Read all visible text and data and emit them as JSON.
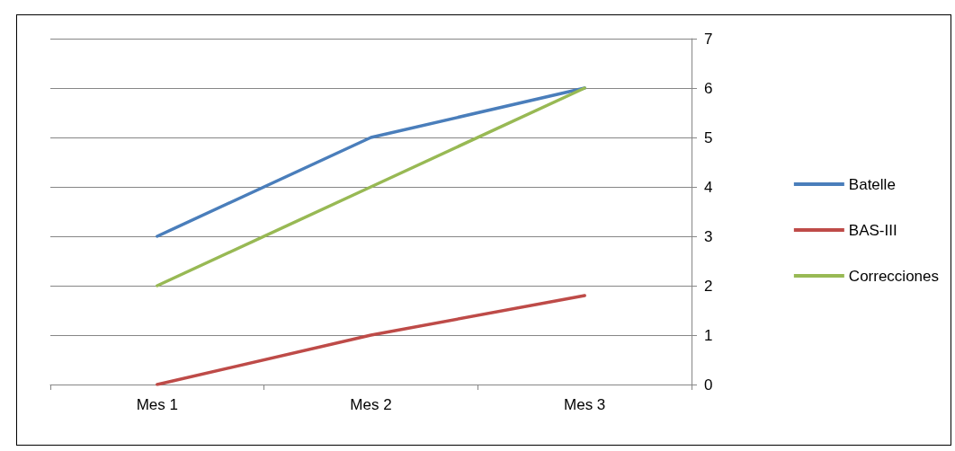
{
  "chart_data": {
    "type": "line",
    "categories": [
      "Mes 1",
      "Mes 2",
      "Mes 3"
    ],
    "series": [
      {
        "name": "Batelle",
        "color": "#4a7ebb",
        "values": [
          3,
          5,
          6
        ]
      },
      {
        "name": "BAS-III",
        "color": "#be4b48",
        "values": [
          0,
          1,
          1.8
        ]
      },
      {
        "name": "Correcciones",
        "color": "#98b954",
        "values": [
          2,
          4,
          6
        ]
      }
    ],
    "ylim": [
      0,
      7
    ],
    "yticks": [
      0,
      1,
      2,
      3,
      4,
      5,
      6,
      7
    ],
    "grid": "y",
    "legend": "right",
    "marker": "none",
    "line_style": "solid"
  }
}
